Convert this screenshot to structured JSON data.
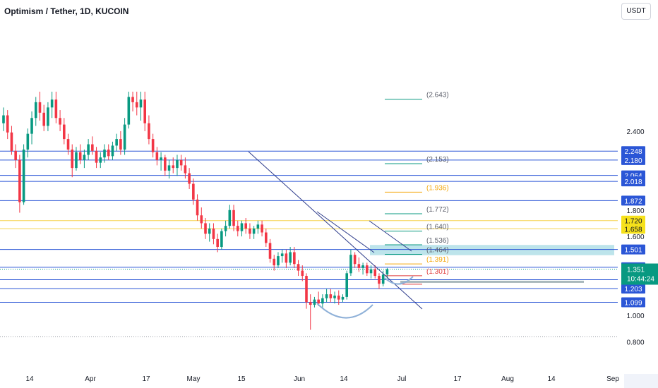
{
  "header": {
    "title": "Optimism / Tether, 1D, KUCOIN",
    "currency_button": "USDT"
  },
  "chart_data": {
    "type": "candlestick",
    "ylim": [
      0.75,
      2.7
    ],
    "x_tick_labels": [
      "14",
      "Apr",
      "17",
      "May",
      "15",
      "Jun",
      "14",
      "Jul",
      "17",
      "Aug",
      "14",
      "Sep"
    ],
    "y_tick_labels": [
      "2.400",
      "1.800",
      "1.600",
      "1.000",
      "0.800"
    ],
    "y_tick_values": [
      2.4,
      1.8,
      1.6,
      1.0,
      0.8
    ],
    "horizontal_levels_blue": [
      2.248,
      2.18,
      2.064,
      2.018,
      1.872,
      1.501,
      1.365,
      1.271,
      1.203,
      1.099
    ],
    "horizontal_levels_yellow": [
      1.72,
      1.658
    ],
    "fib_labels": [
      "(2.643)",
      "(2.153)",
      "(1.936)",
      "(1.772)",
      "(1.640)",
      "(1.536)",
      "(1.464)",
      "(1.391)",
      "(1.301)"
    ],
    "fib_values": [
      2.643,
      2.153,
      1.936,
      1.772,
      1.64,
      1.536,
      1.464,
      1.391,
      1.301
    ],
    "fib_highlight": [
      "1.936",
      "1.391"
    ],
    "resistance_zone": [
      1.457,
      1.535
    ],
    "support_zone": [
      1.247,
      1.263
    ],
    "last_price": "1.351",
    "countdown": "10:44:24",
    "candles": [
      [
        2.46,
        2.58,
        2.4,
        2.52
      ],
      [
        2.52,
        2.56,
        2.34,
        2.39
      ],
      [
        2.39,
        2.44,
        2.22,
        2.25
      ],
      [
        2.25,
        2.3,
        2.12,
        2.18
      ],
      [
        2.18,
        2.22,
        1.78,
        1.86
      ],
      [
        1.86,
        2.3,
        1.84,
        2.26
      ],
      [
        2.26,
        2.42,
        2.2,
        2.38
      ],
      [
        2.38,
        2.55,
        2.3,
        2.5
      ],
      [
        2.5,
        2.66,
        2.44,
        2.62
      ],
      [
        2.62,
        2.7,
        2.48,
        2.54
      ],
      [
        2.54,
        2.6,
        2.4,
        2.44
      ],
      [
        2.44,
        2.62,
        2.4,
        2.58
      ],
      [
        2.58,
        2.7,
        2.5,
        2.64
      ],
      [
        2.64,
        2.7,
        2.46,
        2.5
      ],
      [
        2.5,
        2.56,
        2.4,
        2.45
      ],
      [
        2.45,
        2.5,
        2.3,
        2.34
      ],
      [
        2.34,
        2.38,
        2.22,
        2.26
      ],
      [
        2.26,
        2.3,
        2.05,
        2.12
      ],
      [
        2.12,
        2.28,
        2.1,
        2.24
      ],
      [
        2.24,
        2.3,
        2.15,
        2.18
      ],
      [
        2.18,
        2.26,
        2.12,
        2.22
      ],
      [
        2.22,
        2.34,
        2.18,
        2.3
      ],
      [
        2.3,
        2.36,
        2.22,
        2.25
      ],
      [
        2.25,
        2.28,
        2.12,
        2.16
      ],
      [
        2.16,
        2.24,
        2.12,
        2.2
      ],
      [
        2.2,
        2.3,
        2.16,
        2.26
      ],
      [
        2.26,
        2.3,
        2.18,
        2.21
      ],
      [
        2.21,
        2.32,
        2.18,
        2.29
      ],
      [
        2.29,
        2.38,
        2.25,
        2.34
      ],
      [
        2.34,
        2.4,
        2.22,
        2.26
      ],
      [
        2.26,
        2.5,
        2.22,
        2.45
      ],
      [
        2.45,
        2.7,
        2.42,
        2.66
      ],
      [
        2.66,
        2.7,
        2.55,
        2.62
      ],
      [
        2.62,
        2.7,
        2.52,
        2.58
      ],
      [
        2.58,
        2.7,
        2.48,
        2.64
      ],
      [
        2.64,
        2.7,
        2.4,
        2.46
      ],
      [
        2.46,
        2.52,
        2.3,
        2.34
      ],
      [
        2.34,
        2.38,
        2.2,
        2.24
      ],
      [
        2.24,
        2.28,
        2.14,
        2.18
      ],
      [
        2.18,
        2.24,
        2.1,
        2.2
      ],
      [
        2.2,
        2.22,
        2.06,
        2.1
      ],
      [
        2.1,
        2.18,
        2.04,
        2.14
      ],
      [
        2.14,
        2.2,
        2.08,
        2.12
      ],
      [
        2.12,
        2.22,
        2.06,
        2.18
      ],
      [
        2.18,
        2.22,
        2.1,
        2.14
      ],
      [
        2.14,
        2.2,
        2.04,
        2.08
      ],
      [
        2.08,
        2.12,
        1.96,
        2.0
      ],
      [
        2.0,
        2.04,
        1.84,
        1.88
      ],
      [
        1.88,
        1.92,
        1.72,
        1.76
      ],
      [
        1.76,
        1.82,
        1.66,
        1.7
      ],
      [
        1.7,
        1.74,
        1.58,
        1.62
      ],
      [
        1.62,
        1.7,
        1.56,
        1.66
      ],
      [
        1.66,
        1.7,
        1.54,
        1.58
      ],
      [
        1.58,
        1.62,
        1.48,
        1.52
      ],
      [
        1.52,
        1.66,
        1.5,
        1.64
      ],
      [
        1.64,
        1.72,
        1.6,
        1.68
      ],
      [
        1.68,
        1.84,
        1.66,
        1.8
      ],
      [
        1.8,
        1.84,
        1.64,
        1.68
      ],
      [
        1.68,
        1.72,
        1.6,
        1.64
      ],
      [
        1.64,
        1.72,
        1.6,
        1.7
      ],
      [
        1.7,
        1.74,
        1.62,
        1.66
      ],
      [
        1.66,
        1.7,
        1.58,
        1.62
      ],
      [
        1.62,
        1.68,
        1.58,
        1.66
      ],
      [
        1.66,
        1.72,
        1.62,
        1.69
      ],
      [
        1.69,
        1.72,
        1.6,
        1.63
      ],
      [
        1.63,
        1.66,
        1.52,
        1.55
      ],
      [
        1.55,
        1.58,
        1.4,
        1.43
      ],
      [
        1.43,
        1.46,
        1.34,
        1.38
      ],
      [
        1.38,
        1.48,
        1.36,
        1.45
      ],
      [
        1.45,
        1.5,
        1.4,
        1.47
      ],
      [
        1.47,
        1.5,
        1.36,
        1.4
      ],
      [
        1.4,
        1.52,
        1.38,
        1.48
      ],
      [
        1.48,
        1.52,
        1.36,
        1.39
      ],
      [
        1.39,
        1.42,
        1.3,
        1.34
      ],
      [
        1.34,
        1.38,
        1.26,
        1.3
      ],
      [
        1.3,
        1.32,
        1.05,
        1.1
      ],
      [
        1.1,
        1.16,
        0.89,
        1.08
      ],
      [
        1.08,
        1.14,
        1.06,
        1.12
      ],
      [
        1.12,
        1.18,
        1.07,
        1.09
      ],
      [
        1.09,
        1.16,
        1.06,
        1.13
      ],
      [
        1.13,
        1.2,
        1.1,
        1.16
      ],
      [
        1.16,
        1.2,
        1.1,
        1.13
      ],
      [
        1.13,
        1.18,
        1.09,
        1.15
      ],
      [
        1.15,
        1.19,
        1.08,
        1.12
      ],
      [
        1.12,
        1.16,
        1.1,
        1.14
      ],
      [
        1.14,
        1.34,
        1.12,
        1.32
      ],
      [
        1.32,
        1.5,
        1.3,
        1.46
      ],
      [
        1.46,
        1.48,
        1.36,
        1.39
      ],
      [
        1.39,
        1.44,
        1.33,
        1.36
      ],
      [
        1.36,
        1.4,
        1.31,
        1.38
      ],
      [
        1.38,
        1.4,
        1.3,
        1.32
      ],
      [
        1.32,
        1.38,
        1.28,
        1.35
      ],
      [
        1.35,
        1.38,
        1.28,
        1.3
      ],
      [
        1.3,
        1.32,
        1.2,
        1.24
      ],
      [
        1.24,
        1.34,
        1.22,
        1.31
      ],
      [
        1.31,
        1.36,
        1.28,
        1.35
      ]
    ]
  }
}
